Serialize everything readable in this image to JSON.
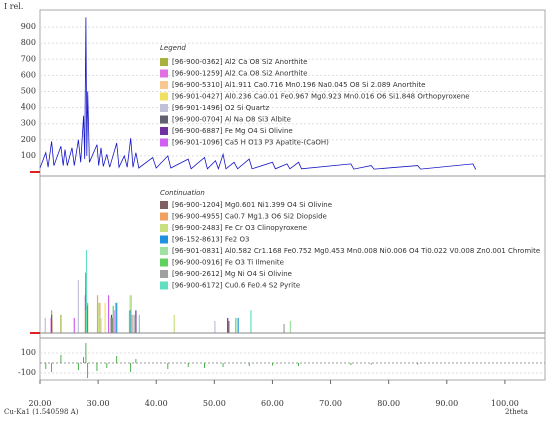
{
  "chart_data": [
    {
      "type": "line",
      "ylabel": "I rel.",
      "xlim": [
        20,
        106.9
      ],
      "ylim": [
        0,
        1000
      ],
      "yticks": [
        100,
        200,
        300,
        400,
        500,
        600,
        700,
        800,
        900
      ],
      "color": "#1515c8",
      "x": [
        20,
        21,
        21.4,
        22,
        22.4,
        23.6,
        24,
        24.3,
        24.7,
        25.5,
        25.9,
        26.6,
        27,
        27.5,
        27.7,
        27.9,
        28.05,
        28.2,
        28.5,
        29.8,
        30.1,
        30.5,
        30.9,
        31.5,
        32,
        33.2,
        33.6,
        34.5,
        35,
        35.6,
        36,
        36.5,
        37,
        39.4,
        40,
        42,
        42.5,
        45.5,
        46,
        48.3,
        48.8,
        50.2,
        50.7,
        51.5,
        52,
        53.4,
        54,
        56,
        56.5,
        60,
        60.5,
        62.5,
        63,
        64.5,
        65,
        73.5,
        74,
        77,
        77.5,
        85,
        85.5,
        94.5,
        95
      ],
      "values": [
        25,
        120,
        30,
        190,
        40,
        160,
        40,
        140,
        40,
        150,
        40,
        200,
        60,
        350,
        80,
        960,
        100,
        500,
        60,
        170,
        40,
        150,
        35,
        110,
        30,
        180,
        30,
        100,
        30,
        210,
        30,
        120,
        25,
        90,
        25,
        100,
        25,
        80,
        20,
        90,
        20,
        70,
        20,
        110,
        20,
        60,
        20,
        80,
        20,
        60,
        20,
        50,
        20,
        60,
        20,
        50,
        18,
        40,
        18,
        40,
        18,
        50,
        15
      ],
      "legend_title": "Legend",
      "series": [
        {
          "name": "[96-900-0362] Al2 Ca O8 Si2 Anorthite",
          "color": "#a8b040",
          "x": [
            22.0,
            23.6,
            27.9,
            28.2
          ],
          "values": [
            15,
            12,
            30,
            20
          ]
        },
        {
          "name": "[96-900-1259] Al2 Ca O8 Si2 Anorthite",
          "color": "#e070e0",
          "x": [
            21.9,
            27.8,
            35.6
          ],
          "values": [
            10,
            25,
            12
          ]
        },
        {
          "name": "[96-900-5310] Al1.911 Ca0.716 Mn0.196 Na0.045 O8 Si 2.089 Anorthite",
          "color": "#f8c890",
          "x": [
            22.1,
            28.0,
            30.5
          ],
          "values": [
            8,
            20,
            10
          ]
        },
        {
          "name": "[96-901-0427] Al0.236 Ca0.01 Fe0.967 Mg0.923 Mn0.016 O6 Si1.848 Orthopyroxene",
          "color": "#f0e060",
          "x": [
            27.8,
            31.2,
            35.5
          ],
          "values": [
            15,
            20,
            10
          ]
        },
        {
          "name": "[96-901-1496] O2 Si Quartz",
          "color": "#c0c0d8",
          "x": [
            20.9,
            26.6,
            50.1
          ],
          "values": [
            10,
            35,
            8
          ]
        },
        {
          "name": "[96-900-0704] Al Na O8 Si3 Albite",
          "color": "#606070",
          "x": [
            22.0,
            27.9,
            28.1
          ],
          "values": [
            12,
            40,
            18
          ]
        },
        {
          "name": "[96-900-6887] Fe Mg O4 Si Olivine",
          "color": "#7030a0",
          "x": [
            32.3,
            36.5,
            52.3
          ],
          "values": [
            12,
            15,
            10
          ]
        },
        {
          "name": "[96-901-1096] Ca5 H O13 P3 Apatite-(CaOH)",
          "color": "#d060f0",
          "x": [
            25.9,
            31.8,
            32.9
          ],
          "values": [
            10,
            25,
            15
          ]
        }
      ]
    },
    {
      "type": "stem",
      "xlim": [
        20,
        106.9
      ],
      "ylim": [
        0,
        100
      ],
      "legend_title": "Continuation",
      "series": [
        {
          "name": "[96-900-1204] Mg0.601 Ni1.399 O4 Si Olivine",
          "color": "#806060",
          "x": [
            32.4,
            35.8,
            52.5
          ],
          "values": [
            10,
            12,
            8
          ]
        },
        {
          "name": "[96-900-4955] Ca0.7 Mg1.3 O6 Si2 Diopside",
          "color": "#f0a060",
          "x": [
            29.9,
            30.3,
            35.6
          ],
          "values": [
            25,
            20,
            15
          ]
        },
        {
          "name": "[96-900-2483] Fe Cr O3 Clinopyroxene",
          "color": "#c8e080",
          "x": [
            30.1,
            35.5,
            43.1
          ],
          "values": [
            20,
            25,
            12
          ]
        },
        {
          "name": "[96-152-8613] Fe2 O3",
          "color": "#2090e0",
          "x": [
            33.2,
            35.6,
            54.1
          ],
          "values": [
            20,
            15,
            10
          ]
        },
        {
          "name": "[96-901-0831] Al0.582 Cr1.168 Fe0.752 Mg0.453 Mn0.008 Ni0.006 O4 Ti0.022 V0.008 Zn0.001 Chromite",
          "color": "#a0e0a0",
          "x": [
            30.3,
            35.7,
            63.1
          ],
          "values": [
            12,
            25,
            8
          ]
        },
        {
          "name": "[96-900-0916] Fe O3 Ti Ilmenite",
          "color": "#60d060",
          "x": [
            32.6,
            35.4,
            53.7
          ],
          "values": [
            18,
            15,
            10
          ]
        },
        {
          "name": "[96-900-2612] Mg Ni O4 Si Olivine",
          "color": "#a0a0a0",
          "x": [
            32.2,
            36.2,
            62.0
          ],
          "values": [
            10,
            12,
            6
          ]
        },
        {
          "name": "[96-900-6172] Cu0.6 Fe0.4 S2 Pyrite",
          "color": "#60e0c0",
          "x": [
            28.0,
            33.0,
            37.1,
            56.3
          ],
          "values": [
            55,
            20,
            12,
            15
          ]
        }
      ]
    },
    {
      "type": "stem",
      "xlim": [
        20,
        106.9
      ],
      "ylim": [
        -250,
        250
      ],
      "yticks": [
        100,
        -100
      ],
      "color": "#20a020",
      "x": [
        21,
        22,
        23.6,
        26.6,
        27.5,
        27.9,
        28.2,
        29.8,
        31.5,
        33.2,
        35.6,
        36.5,
        42,
        45.5,
        48.3,
        51.5,
        56,
        60,
        64.5,
        73.5,
        77,
        85
      ],
      "values": [
        -60,
        -90,
        80,
        -70,
        60,
        200,
        -150,
        -80,
        -50,
        70,
        -90,
        40,
        -60,
        -40,
        -50,
        -40,
        -30,
        -25,
        -30,
        -20,
        -15,
        -15
      ],
      "xticks": [
        {
          "value": 20,
          "label": "20.00"
        },
        {
          "value": 30,
          "label": "30.00"
        },
        {
          "value": 40,
          "label": "40.00"
        },
        {
          "value": 50,
          "label": "50.00"
        },
        {
          "value": 60,
          "label": "60.00"
        },
        {
          "value": 70,
          "label": "70.00"
        },
        {
          "value": 80,
          "label": "80.00"
        },
        {
          "value": 90,
          "label": "90.00"
        },
        {
          "value": 100,
          "label": "100.00"
        }
      ],
      "xlabel": "2theta",
      "footer": "Cu-Ka1 (1.540598 A)"
    }
  ]
}
